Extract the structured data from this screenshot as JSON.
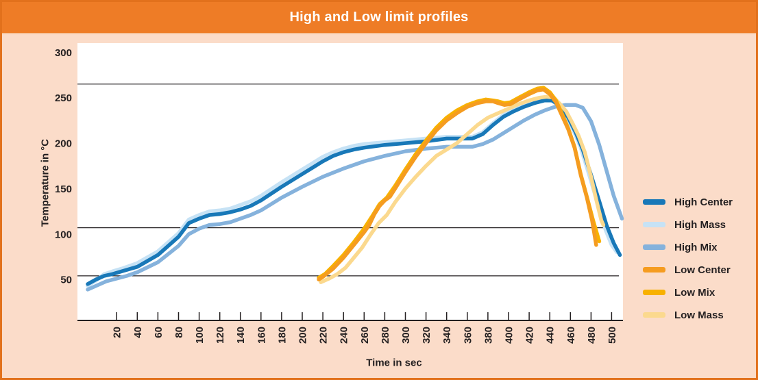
{
  "header": {
    "title_note": "bound to chart_data.title"
  },
  "colors": {
    "frame_border": "#e2711c",
    "background": "#fbdcc9",
    "header_bg": "#ee7c26",
    "header_text": "#ffffff",
    "plot_bg": "#ffffff",
    "text": "#231f20"
  },
  "chart_data": {
    "type": "line",
    "title": "High and Low limit profiles",
    "xlabel": "Time in sec",
    "ylabel": "Temperature in °C",
    "xlim": [
      -18,
      511
    ],
    "ylim": [
      5,
      310
    ],
    "x_ticks": [
      20,
      40,
      60,
      80,
      100,
      120,
      140,
      160,
      180,
      200,
      220,
      240,
      260,
      280,
      300,
      320,
      340,
      360,
      380,
      400,
      420,
      440,
      460,
      480,
      500
    ],
    "y_ticks": [
      50,
      100,
      150,
      200,
      250,
      300
    ],
    "reference_lines_c": [
      265,
      107,
      54
    ],
    "grid": "horizontal-reference-lines-only",
    "legend_position": "right",
    "series": [
      {
        "name": "High Center",
        "color": "#1878b8",
        "z": 3,
        "stroke_width": 5.5,
        "points": [
          [
            -8,
            45
          ],
          [
            0,
            50
          ],
          [
            8,
            54
          ],
          [
            16,
            56
          ],
          [
            25,
            59
          ],
          [
            40,
            64
          ],
          [
            60,
            77
          ],
          [
            80,
            97
          ],
          [
            90,
            112
          ],
          [
            100,
            117
          ],
          [
            110,
            121
          ],
          [
            120,
            122
          ],
          [
            130,
            124
          ],
          [
            140,
            127
          ],
          [
            150,
            131
          ],
          [
            160,
            137
          ],
          [
            180,
            152
          ],
          [
            200,
            166
          ],
          [
            210,
            173
          ],
          [
            220,
            180
          ],
          [
            230,
            186
          ],
          [
            240,
            190
          ],
          [
            250,
            193
          ],
          [
            260,
            195
          ],
          [
            280,
            198
          ],
          [
            300,
            200
          ],
          [
            320,
            202
          ],
          [
            340,
            205
          ],
          [
            355,
            205
          ],
          [
            365,
            205
          ],
          [
            375,
            210
          ],
          [
            385,
            220
          ],
          [
            395,
            229
          ],
          [
            405,
            235
          ],
          [
            415,
            240
          ],
          [
            425,
            244
          ],
          [
            435,
            247
          ],
          [
            442,
            247
          ],
          [
            450,
            241
          ],
          [
            458,
            228
          ],
          [
            465,
            212
          ],
          [
            472,
            193
          ],
          [
            480,
            165
          ],
          [
            488,
            136
          ],
          [
            495,
            110
          ],
          [
            502,
            90
          ],
          [
            508,
            77
          ]
        ]
      },
      {
        "name": "High Mass",
        "color": "#c6e2f5",
        "z": 1,
        "stroke_width": 5.5,
        "points": [
          [
            -8,
            43
          ],
          [
            0,
            49
          ],
          [
            8,
            56
          ],
          [
            16,
            59
          ],
          [
            25,
            62
          ],
          [
            40,
            68
          ],
          [
            60,
            81
          ],
          [
            80,
            101
          ],
          [
            90,
            116
          ],
          [
            100,
            121
          ],
          [
            110,
            125
          ],
          [
            120,
            126
          ],
          [
            130,
            128
          ],
          [
            140,
            132
          ],
          [
            150,
            136
          ],
          [
            160,
            142
          ],
          [
            180,
            157
          ],
          [
            200,
            171
          ],
          [
            210,
            178
          ],
          [
            220,
            185
          ],
          [
            230,
            190
          ],
          [
            240,
            194
          ],
          [
            250,
            197
          ],
          [
            260,
            199
          ],
          [
            280,
            201
          ],
          [
            300,
            203
          ],
          [
            320,
            205
          ],
          [
            340,
            207
          ],
          [
            355,
            207
          ],
          [
            365,
            207
          ],
          [
            375,
            212
          ],
          [
            385,
            222
          ],
          [
            395,
            231
          ],
          [
            405,
            237
          ],
          [
            415,
            243
          ],
          [
            425,
            248
          ],
          [
            432,
            250
          ],
          [
            440,
            249
          ],
          [
            448,
            243
          ],
          [
            456,
            230
          ],
          [
            463,
            214
          ],
          [
            470,
            195
          ],
          [
            478,
            166
          ],
          [
            486,
            135
          ],
          [
            494,
            105
          ],
          [
            500,
            88
          ],
          [
            505,
            80
          ]
        ]
      },
      {
        "name": "High Mix",
        "color": "#85b2dc",
        "z": 2,
        "stroke_width": 5.5,
        "points": [
          [
            -8,
            39
          ],
          [
            0,
            43
          ],
          [
            10,
            48
          ],
          [
            20,
            51
          ],
          [
            30,
            54
          ],
          [
            40,
            58
          ],
          [
            60,
            69
          ],
          [
            80,
            87
          ],
          [
            90,
            100
          ],
          [
            100,
            106
          ],
          [
            110,
            110
          ],
          [
            120,
            111
          ],
          [
            130,
            113
          ],
          [
            140,
            117
          ],
          [
            150,
            121
          ],
          [
            160,
            126
          ],
          [
            180,
            140
          ],
          [
            200,
            152
          ],
          [
            220,
            163
          ],
          [
            240,
            172
          ],
          [
            260,
            180
          ],
          [
            280,
            186
          ],
          [
            300,
            191
          ],
          [
            320,
            194
          ],
          [
            340,
            196
          ],
          [
            355,
            196
          ],
          [
            365,
            196
          ],
          [
            375,
            199
          ],
          [
            385,
            204
          ],
          [
            395,
            211
          ],
          [
            405,
            218
          ],
          [
            415,
            225
          ],
          [
            425,
            231
          ],
          [
            435,
            236
          ],
          [
            445,
            240
          ],
          [
            455,
            242
          ],
          [
            465,
            242
          ],
          [
            472,
            239
          ],
          [
            480,
            224
          ],
          [
            488,
            198
          ],
          [
            495,
            170
          ],
          [
            502,
            142
          ],
          [
            510,
            117
          ]
        ]
      },
      {
        "name": "Low Center",
        "color": "#f59c20",
        "z": 6,
        "stroke_width": 5.5,
        "points": [
          [
            216,
            50
          ],
          [
            220,
            53
          ],
          [
            230,
            62
          ],
          [
            240,
            74
          ],
          [
            250,
            88
          ],
          [
            260,
            102
          ],
          [
            265,
            110
          ],
          [
            270,
            122
          ],
          [
            275,
            131
          ],
          [
            280,
            137
          ],
          [
            285,
            141
          ],
          [
            290,
            150
          ],
          [
            300,
            168
          ],
          [
            310,
            185
          ],
          [
            320,
            200
          ],
          [
            330,
            214
          ],
          [
            340,
            225
          ],
          [
            350,
            233
          ],
          [
            360,
            240
          ],
          [
            370,
            244
          ],
          [
            378,
            246
          ],
          [
            385,
            246
          ],
          [
            390,
            244
          ],
          [
            396,
            242
          ],
          [
            402,
            243
          ],
          [
            410,
            248
          ],
          [
            420,
            254
          ],
          [
            428,
            258
          ],
          [
            434,
            259
          ],
          [
            440,
            254
          ],
          [
            446,
            245
          ],
          [
            452,
            230
          ],
          [
            458,
            215
          ],
          [
            464,
            195
          ],
          [
            470,
            165
          ],
          [
            476,
            140
          ],
          [
            481,
            115
          ],
          [
            485,
            88
          ]
        ]
      },
      {
        "name": "Low Mix",
        "color": "#f8b100",
        "z": 5,
        "stroke_width": 5.5,
        "points": [
          [
            216,
            52
          ],
          [
            222,
            56
          ],
          [
            230,
            65
          ],
          [
            240,
            77
          ],
          [
            250,
            91
          ],
          [
            260,
            106
          ],
          [
            268,
            120
          ],
          [
            275,
            133
          ],
          [
            282,
            140
          ],
          [
            290,
            153
          ],
          [
            300,
            171
          ],
          [
            310,
            188
          ],
          [
            320,
            203
          ],
          [
            330,
            217
          ],
          [
            340,
            228
          ],
          [
            350,
            236
          ],
          [
            360,
            242
          ],
          [
            370,
            246
          ],
          [
            378,
            248
          ],
          [
            385,
            247
          ],
          [
            390,
            246
          ],
          [
            396,
            244
          ],
          [
            402,
            245
          ],
          [
            410,
            250
          ],
          [
            420,
            256
          ],
          [
            428,
            260
          ],
          [
            434,
            261
          ],
          [
            440,
            256
          ],
          [
            446,
            247
          ],
          [
            452,
            232
          ],
          [
            458,
            216
          ],
          [
            464,
            196
          ],
          [
            470,
            166
          ],
          [
            476,
            141
          ],
          [
            482,
            115
          ],
          [
            488,
            92
          ]
        ]
      },
      {
        "name": "Low Mass",
        "color": "#fbd98e",
        "z": 4,
        "stroke_width": 5.5,
        "points": [
          [
            218,
            47
          ],
          [
            226,
            51
          ],
          [
            234,
            56
          ],
          [
            242,
            63
          ],
          [
            250,
            74
          ],
          [
            258,
            85
          ],
          [
            266,
            99
          ],
          [
            274,
            112
          ],
          [
            282,
            121
          ],
          [
            290,
            135
          ],
          [
            300,
            150
          ],
          [
            310,
            163
          ],
          [
            320,
            175
          ],
          [
            330,
            186
          ],
          [
            340,
            193
          ],
          [
            350,
            200
          ],
          [
            360,
            210
          ],
          [
            370,
            220
          ],
          [
            380,
            228
          ],
          [
            390,
            233
          ],
          [
            400,
            238
          ],
          [
            410,
            243
          ],
          [
            420,
            247
          ],
          [
            430,
            250
          ],
          [
            437,
            251
          ],
          [
            444,
            250
          ],
          [
            450,
            243
          ],
          [
            456,
            235
          ],
          [
            462,
            222
          ],
          [
            468,
            208
          ],
          [
            474,
            190
          ],
          [
            480,
            163
          ],
          [
            485,
            138
          ],
          [
            490,
            115
          ],
          [
            492,
            110
          ]
        ]
      }
    ]
  }
}
